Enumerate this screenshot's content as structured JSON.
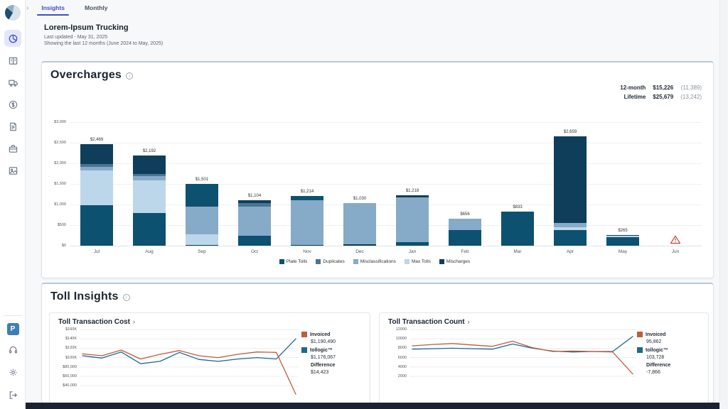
{
  "tabs": {
    "items": [
      {
        "label": "Insights",
        "active": true
      },
      {
        "label": "Monthly",
        "active": false
      }
    ]
  },
  "header": {
    "title": "Lorem-Ipsum Trucking",
    "updated": "Last updated - May 31, 2025",
    "range": "Showing the last 12 months (June 2024 to May, 2025)"
  },
  "sidebar": {
    "main_icons": [
      "donut-chart",
      "book",
      "truck",
      "dollar-circle",
      "invoice",
      "briefcase",
      "image"
    ],
    "active_index": 0,
    "bottom_icons": [
      "parking-badge",
      "headset",
      "gear",
      "logout"
    ],
    "parking_letter": "P"
  },
  "overcharges_card": {
    "title": "Overcharges",
    "stats": [
      {
        "label": "12-month",
        "value": "$15,226",
        "count": "(11,389)"
      },
      {
        "label": "Lifetime",
        "value": "$25,679",
        "count": "(13,242)"
      }
    ]
  },
  "toll_insights_card": {
    "title": "Toll Insights"
  },
  "colors": {
    "accent": "#3f4ec9",
    "invoiced": "#c05b3e",
    "tollogic": "#1d6a8d",
    "warning": "#c0392b"
  },
  "chart_data": [
    {
      "id": "overcharges",
      "type": "bar",
      "stacked": true,
      "title": "Overcharges",
      "ylim": [
        0,
        3000
      ],
      "y_ticks": [
        "$3,000",
        "$2,500",
        "$2,000",
        "$1,500",
        "$1,000",
        "$500",
        "$0"
      ],
      "categories": [
        "Jul",
        "Aug",
        "Sep",
        "Oct",
        "Nov",
        "Dec",
        "Jan",
        "Feb",
        "Mar",
        "Apr",
        "May",
        "Jun"
      ],
      "totals": [
        2469,
        2192,
        1501,
        1104,
        1214,
        1030,
        1218,
        656,
        833,
        2659,
        265,
        null
      ],
      "total_labels": [
        "$2,469",
        "$2,192",
        "$1,501",
        "$1,104",
        "$1,214",
        "$1,030",
        "$1,218",
        "$656",
        "$833",
        "$2,659",
        "$265",
        ""
      ],
      "legend": [
        {
          "key": "plate",
          "label": "Plate Tolls",
          "color": "#0d5170"
        },
        {
          "key": "duplicates",
          "label": "Duplicates",
          "color": "#4a7493"
        },
        {
          "key": "misclass",
          "label": "Misclassifications",
          "color": "#85abc8"
        },
        {
          "key": "max",
          "label": "Max Tolls",
          "color": "#bcd7ea"
        },
        {
          "key": "mischarges",
          "label": "Mischarges",
          "color": "#0e3e5a"
        }
      ],
      "bars": [
        {
          "month": "Jul",
          "segments": [
            [
              "plate",
              980
            ],
            [
              "max",
              850
            ],
            [
              "misclass",
              90
            ],
            [
              "duplicates",
              60
            ],
            [
              "mischarges",
              489
            ]
          ]
        },
        {
          "month": "Aug",
          "segments": [
            [
              "plate",
              800
            ],
            [
              "max",
              790
            ],
            [
              "misclass",
              100
            ],
            [
              "duplicates",
              60
            ],
            [
              "mischarges",
              442
            ]
          ]
        },
        {
          "month": "Sep",
          "segments": [
            [
              "mischarges",
              25
            ],
            [
              "max",
              255
            ],
            [
              "misclass",
              670
            ],
            [
              "plate",
              551
            ]
          ]
        },
        {
          "month": "Oct",
          "segments": [
            [
              "plate",
              250
            ],
            [
              "misclass",
              700
            ],
            [
              "duplicates",
              90
            ],
            [
              "mischarges",
              64
            ]
          ]
        },
        {
          "month": "Nov",
          "segments": [
            [
              "mischarges",
              20
            ],
            [
              "misclass",
              1080
            ],
            [
              "plate",
              114
            ]
          ]
        },
        {
          "month": "Dec",
          "segments": [
            [
              "mischarges",
              30
            ],
            [
              "misclass",
              1000
            ]
          ]
        },
        {
          "month": "Jan",
          "segments": [
            [
              "plate",
              80
            ],
            [
              "misclass",
              1100
            ],
            [
              "mischarges",
              38
            ]
          ]
        },
        {
          "month": "Feb",
          "segments": [
            [
              "plate",
              380
            ],
            [
              "misclass",
              276
            ]
          ]
        },
        {
          "month": "Mar",
          "segments": [
            [
              "plate",
              833
            ]
          ]
        },
        {
          "month": "Apr",
          "segments": [
            [
              "plate",
              380
            ],
            [
              "max",
              70
            ],
            [
              "misclass",
              110
            ],
            [
              "mischarges",
              2099
            ]
          ]
        },
        {
          "month": "May",
          "segments": [
            [
              "plate",
              215
            ],
            [
              "max",
              35
            ],
            [
              "mischarges",
              15
            ]
          ]
        },
        {
          "month": "Jun",
          "segments": [],
          "warning": true
        }
      ]
    },
    {
      "id": "toll-transaction-cost",
      "type": "line",
      "title": "Toll Transaction Cost",
      "y_ticks": [
        "$160K",
        "$140K",
        "$120K",
        "$100K",
        "$80,000",
        "$60,000",
        "$40,000"
      ],
      "y_top": 160000,
      "y_step": 20000,
      "series": [
        {
          "name": "Invoiced",
          "color": "#c05b3e",
          "total_label": "$1,190,490",
          "values": [
            108000,
            104000,
            116000,
            97000,
            107000,
            115000,
            104000,
            100000,
            107000,
            112000,
            111000,
            22000
          ]
        },
        {
          "name": "tollogic™",
          "color": "#1d6a8d",
          "total_label": "$1,176,067",
          "values": [
            104000,
            99000,
            112000,
            87000,
            92000,
            111000,
            96000,
            92000,
            97000,
            100000,
            97000,
            140000
          ]
        }
      ],
      "difference_label": "Difference",
      "difference_value": "$14,423"
    },
    {
      "id": "toll-transaction-count",
      "type": "line",
      "title": "Toll Transaction Count",
      "y_ticks": [
        "12000",
        "10000",
        "8000",
        "6000",
        "4000",
        "2000"
      ],
      "y_top": 12000,
      "y_step": 2000,
      "series": [
        {
          "name": "Invoiced",
          "color": "#c05b3e",
          "total_label": "95,862",
          "values": [
            8500,
            8800,
            9000,
            8700,
            8400,
            9500,
            8100,
            7300,
            7400,
            7300,
            7200,
            2500
          ]
        },
        {
          "name": "tollogic™",
          "color": "#1d6a8d",
          "total_label": "103,728",
          "values": [
            7800,
            7900,
            8000,
            7900,
            7800,
            8900,
            8000,
            7400,
            7200,
            7300,
            7300,
            10500
          ]
        }
      ],
      "difference_label": "Difference",
      "difference_value": "-7,866"
    }
  ]
}
